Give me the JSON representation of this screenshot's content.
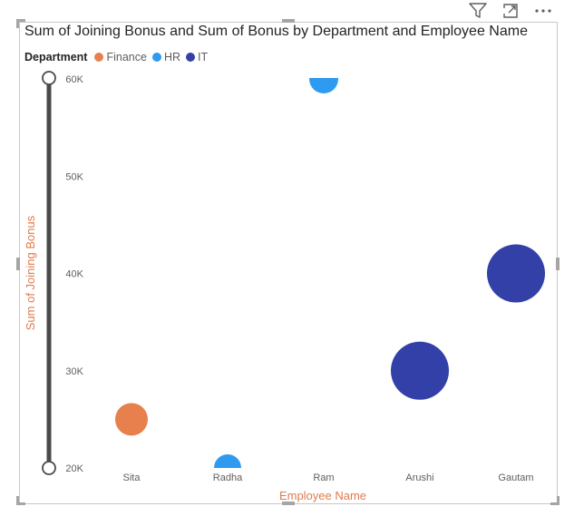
{
  "colors": {
    "Finance": "#e8804e",
    "HR": "#2e9bf0",
    "IT": "#3240a8",
    "axis_title": "#e07b4c"
  },
  "toolbar": {
    "filter_icon": "filter-icon",
    "focus_icon": "focus-mode-icon",
    "more_icon": "more-options-icon"
  },
  "chart_data": {
    "type": "scatter",
    "title": "Sum of Joining Bonus and Sum of Bonus by Department and Employee Name",
    "xlabel": "Employee Name",
    "ylabel": "Sum of Joining Bonus",
    "legend_title": "Department",
    "legend_position": "top-left",
    "legend": [
      "Finance",
      "HR",
      "IT"
    ],
    "categories": [
      "Sita",
      "Radha",
      "Ram",
      "Arushi",
      "Gautam"
    ],
    "ylim": [
      20000,
      60000
    ],
    "yticks": [
      {
        "value": 60000,
        "label": "60K"
      },
      {
        "value": 50000,
        "label": "50K"
      },
      {
        "value": 40000,
        "label": "40K"
      },
      {
        "value": 30000,
        "label": "30K"
      },
      {
        "value": 20000,
        "label": "20K"
      }
    ],
    "grid": false,
    "points": [
      {
        "name": "Sita",
        "department": "Finance",
        "x": "Sita",
        "y": 25000,
        "bonus": 18
      },
      {
        "name": "Radha",
        "department": "HR",
        "x": "Radha",
        "y": 20000,
        "bonus": 15
      },
      {
        "name": "Ram",
        "department": "HR",
        "x": "Ram",
        "y": 60000,
        "bonus": 16
      },
      {
        "name": "Arushi",
        "department": "IT",
        "x": "Arushi",
        "y": 30000,
        "bonus": 32
      },
      {
        "name": "Gautam",
        "department": "IT",
        "x": "Gautam",
        "y": 40000,
        "bonus": 32
      }
    ]
  }
}
